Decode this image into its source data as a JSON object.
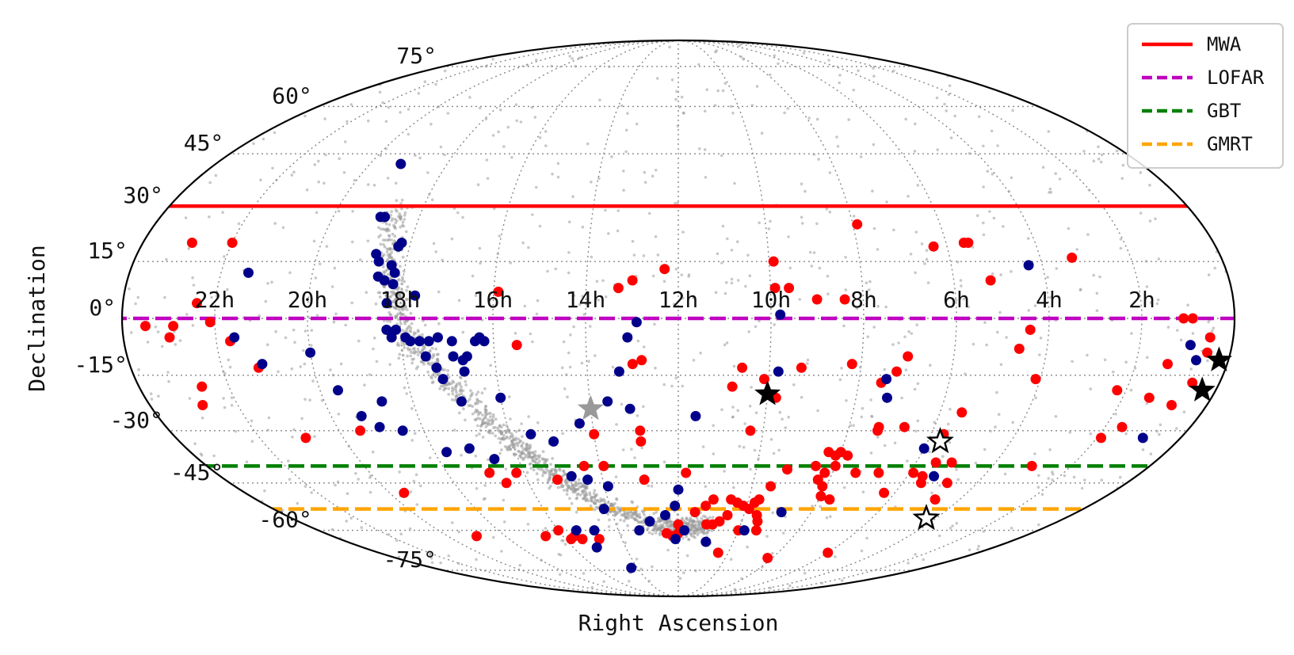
{
  "chart_data": {
    "type": "scatter",
    "projection": "mollweide",
    "xlabel": "Right Ascension",
    "ylabel": "Declination",
    "ra_tick_labels": [
      "22h",
      "20h",
      "18h",
      "16h",
      "14h",
      "12h",
      "10h",
      "8h",
      "6h",
      "4h",
      "2h"
    ],
    "dec_tick_labels": [
      "75°",
      "60°",
      "45°",
      "30°",
      "15°",
      "0°",
      "-15°",
      "-30°",
      "-45°",
      "-60°",
      "-75°"
    ],
    "dec_ticks": [
      75,
      60,
      45,
      30,
      15,
      0,
      -15,
      -30,
      -45,
      -60,
      -75
    ],
    "grid": true,
    "legend_position": "top-right",
    "limits": [
      {
        "name": "MWA",
        "dec": 30,
        "color": "#ff0000",
        "style": "solid"
      },
      {
        "name": "LOFAR",
        "dec": 0,
        "color": "#bf00bf",
        "style": "dashed"
      },
      {
        "name": "GBT",
        "dec": -40,
        "color": "#008000",
        "style": "dashed"
      },
      {
        "name": "GMRT",
        "dec": -53,
        "color": "#ffa500",
        "style": "dashed"
      }
    ],
    "series": [
      {
        "role": "red-sources",
        "color": "#ff0000",
        "points": [
          [
            10.8,
            -18
          ],
          [
            10.6,
            -13
          ],
          [
            10.3,
            -30
          ],
          [
            9.8,
            -21
          ],
          [
            10.1,
            -16
          ],
          [
            9.3,
            -13
          ],
          [
            8.2,
            -12
          ],
          [
            7.5,
            -17
          ],
          [
            7.2,
            -14
          ],
          [
            7.0,
            -10
          ],
          [
            9.9,
            15
          ],
          [
            9.9,
            8
          ],
          [
            9.6,
            8
          ],
          [
            9.0,
            5
          ],
          [
            8.4,
            5
          ],
          [
            7.9,
            25
          ],
          [
            6.3,
            19
          ],
          [
            5.6,
            20
          ],
          [
            5.5,
            20
          ],
          [
            5.2,
            10
          ],
          [
            4.6,
            -8
          ],
          [
            4.4,
            -3
          ],
          [
            4.1,
            -16
          ],
          [
            3.3,
            16
          ],
          [
            13.3,
            8
          ],
          [
            13.0,
            10
          ],
          [
            12.3,
            13
          ],
          [
            15.9,
            7
          ],
          [
            15.5,
            -7
          ],
          [
            13.0,
            -12
          ],
          [
            12.8,
            -11
          ],
          [
            12.9,
            -30
          ],
          [
            12.9,
            -33
          ],
          [
            14.0,
            -31
          ],
          [
            13.9,
            -40
          ],
          [
            14.4,
            -40
          ],
          [
            12.9,
            -44
          ],
          [
            11.8,
            -42
          ],
          [
            11.0,
            -50
          ],
          [
            11.5,
            -54
          ],
          [
            12.0,
            -58
          ],
          [
            12.0,
            -61
          ],
          [
            12.2,
            -62
          ],
          [
            12.4,
            -61
          ],
          [
            10.7,
            -57
          ],
          [
            10.9,
            -58
          ],
          [
            10.5,
            -55
          ],
          [
            10.0,
            -60
          ],
          [
            8.5,
            -40
          ],
          [
            8.2,
            -42
          ],
          [
            8.0,
            -40
          ],
          [
            7.4,
            -42
          ],
          [
            6.8,
            -42
          ],
          [
            6.3,
            -48
          ],
          [
            5.9,
            -42
          ],
          [
            5.6,
            -43
          ],
          [
            5.5,
            -45
          ],
          [
            4.8,
            -45
          ],
          [
            4.7,
            -50
          ],
          [
            5.1,
            -39
          ],
          [
            5.5,
            -39
          ],
          [
            3.0,
            -40
          ],
          [
            7.3,
            -30
          ],
          [
            7.3,
            -29
          ],
          [
            6.7,
            -29
          ],
          [
            5.5,
            -25
          ],
          [
            5.7,
            -31
          ],
          [
            8.3,
            -36
          ],
          [
            8.1,
            -37
          ],
          [
            8.0,
            -36
          ],
          [
            7.8,
            -37
          ],
          [
            8.3,
            -44
          ],
          [
            8.1,
            -46
          ],
          [
            7.7,
            -50
          ],
          [
            8.0,
            -49
          ],
          [
            9.2,
            -41
          ],
          [
            9.5,
            -46
          ],
          [
            9.7,
            -50
          ],
          [
            9.9,
            -53
          ],
          [
            9.6,
            -55
          ],
          [
            9.5,
            -57
          ],
          [
            9.4,
            -60
          ],
          [
            10.1,
            -52
          ],
          [
            11.2,
            -52
          ],
          [
            10.5,
            -50
          ],
          [
            10.3,
            -51
          ],
          [
            9.8,
            -51
          ],
          [
            10.4,
            -68
          ],
          [
            8.2,
            -70
          ],
          [
            6.0,
            -68
          ],
          [
            11.1,
            -58
          ],
          [
            14.8,
            -63
          ],
          [
            15.4,
            -63
          ],
          [
            15.6,
            -62
          ],
          [
            15.8,
            -63
          ],
          [
            16.0,
            -60
          ],
          [
            16.6,
            -62
          ],
          [
            16.6,
            -45
          ],
          [
            16.2,
            -42
          ],
          [
            15.2,
            -44
          ],
          [
            16.9,
            -42
          ],
          [
            22.9,
            20
          ],
          [
            22.0,
            20
          ],
          [
            22.4,
            4
          ],
          [
            23.5,
            -2
          ],
          [
            23.0,
            -5
          ],
          [
            22.9,
            -2
          ],
          [
            22.1,
            -1
          ],
          [
            21.7,
            -6
          ],
          [
            22.6,
            -18
          ],
          [
            22.8,
            -23
          ],
          [
            21.2,
            -13
          ],
          [
            20.9,
            -32
          ],
          [
            19.5,
            -30
          ],
          [
            19.6,
            -48
          ],
          [
            19.0,
            -62
          ],
          [
            1.1,
            0
          ],
          [
            0.9,
            0
          ],
          [
            0.5,
            -5
          ],
          [
            0.5,
            -9
          ],
          [
            1.3,
            -12
          ],
          [
            1.4,
            -21
          ],
          [
            1.6,
            -29
          ],
          [
            0.8,
            -23
          ],
          [
            0.6,
            -17
          ],
          [
            2.2,
            -19
          ],
          [
            1.9,
            -32
          ]
        ]
      },
      {
        "role": "blue-sources",
        "color": "#00008b",
        "points": [
          [
            19.2,
            42
          ],
          [
            18.9,
            27
          ],
          [
            18.8,
            27
          ],
          [
            18.7,
            17
          ],
          [
            18.6,
            15
          ],
          [
            18.2,
            20
          ],
          [
            18.25,
            19
          ],
          [
            18.3,
            14
          ],
          [
            18.55,
            11
          ],
          [
            18.4,
            10
          ],
          [
            18.2,
            9
          ],
          [
            18.2,
            12
          ],
          [
            18.3,
            4
          ],
          [
            18.1,
            -3
          ],
          [
            18.3,
            -3
          ],
          [
            18.2,
            -5
          ],
          [
            17.9,
            -5
          ],
          [
            17.8,
            -6
          ],
          [
            17.6,
            -6
          ],
          [
            17.4,
            -6
          ],
          [
            17.2,
            -5
          ],
          [
            16.9,
            -6
          ],
          [
            16.7,
            -11
          ],
          [
            16.4,
            -6
          ],
          [
            16.2,
            -6
          ],
          [
            16.6,
            -10
          ],
          [
            16.9,
            -10
          ],
          [
            17.3,
            -13
          ],
          [
            17.5,
            -10
          ],
          [
            17.2,
            -16
          ],
          [
            16.9,
            -22
          ],
          [
            16.7,
            -14
          ],
          [
            16.3,
            -5
          ],
          [
            16.0,
            -21
          ],
          [
            15.5,
            -31
          ],
          [
            15.0,
            -33
          ],
          [
            14.8,
            -43
          ],
          [
            14.4,
            -44
          ],
          [
            13.9,
            -46
          ],
          [
            14.2,
            -53
          ],
          [
            15.4,
            -60
          ],
          [
            14.8,
            -60
          ],
          [
            14.3,
            -74
          ],
          [
            13.6,
            -22
          ],
          [
            12.9,
            -1
          ],
          [
            13.3,
            -14
          ],
          [
            14.3,
            -28
          ],
          [
            13.1,
            -24
          ],
          [
            13.1,
            -5
          ],
          [
            9.8,
            1
          ],
          [
            17.7,
            6
          ],
          [
            9.8,
            -14
          ],
          [
            7.4,
            -16
          ],
          [
            7.3,
            -21
          ],
          [
            6.0,
            -35
          ],
          [
            5.3,
            -43
          ],
          [
            4.3,
            14
          ],
          [
            0.9,
            -7
          ],
          [
            0.7,
            -11
          ],
          [
            0.9,
            -32
          ],
          [
            11.8,
            -60
          ],
          [
            12.1,
            -63
          ],
          [
            21.4,
            12
          ],
          [
            21.6,
            -5
          ],
          [
            21.1,
            -12
          ],
          [
            20.0,
            -9
          ],
          [
            19.6,
            -19
          ],
          [
            19.3,
            -26
          ],
          [
            19.0,
            -29
          ],
          [
            18.7,
            -22
          ],
          [
            18.5,
            -30
          ],
          [
            17.7,
            -36
          ],
          [
            17.1,
            -35
          ],
          [
            16.6,
            -38
          ],
          [
            11.6,
            -26
          ],
          [
            12.0,
            -47
          ],
          [
            12.1,
            -52
          ],
          [
            12.4,
            -55
          ],
          [
            12.9,
            -57
          ],
          [
            13.3,
            -60
          ],
          [
            15.1,
            -66
          ],
          [
            11.0,
            -64
          ],
          [
            9.8,
            -60
          ],
          [
            8.9,
            -54
          ]
        ]
      },
      {
        "role": "filled-star-markers",
        "color": "#000000",
        "points": [
          [
            10.0,
            -20
          ],
          [
            0.2,
            -11
          ],
          [
            0.3,
            -19
          ]
        ]
      },
      {
        "role": "grey-star-marker",
        "color": "#999999",
        "points": [
          [
            14.0,
            -24
          ]
        ]
      },
      {
        "role": "open-star-markers",
        "color": "#000000",
        "points": [
          [
            5.7,
            -33
          ],
          [
            4.3,
            -56
          ]
        ]
      }
    ],
    "background_density": {
      "role": "grey-background-points",
      "color": "#9a9a9a",
      "description": "dense band of sources along the Galactic plane plus sparse all-sky background"
    }
  }
}
